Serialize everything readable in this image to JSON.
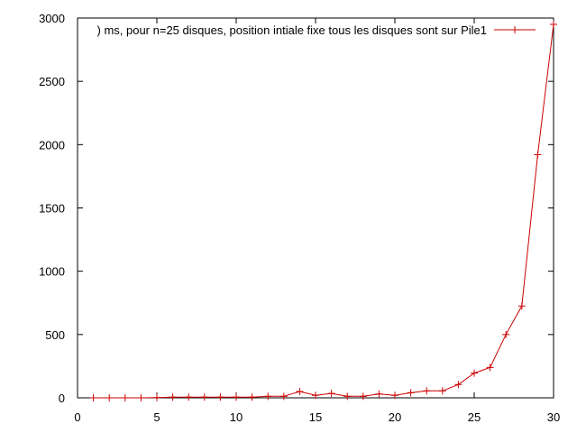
{
  "chart_data": {
    "type": "line",
    "title": "",
    "xlabel": "",
    "ylabel": "",
    "xlim": [
      0,
      30
    ],
    "ylim": [
      0,
      3000
    ],
    "x_ticks": [
      "0",
      "5",
      "10",
      "15",
      "20",
      "25",
      "30"
    ],
    "y_ticks": [
      "0",
      "500",
      "1000",
      "1500",
      "2000",
      "2500",
      "3000"
    ],
    "grid": false,
    "legend_position": "top-right",
    "series": [
      {
        "name": ") ms, pour n=25 disques, position intiale fixe tous les disques sont sur Pile1",
        "color": "#cc0000",
        "marker": "plus",
        "x": [
          1,
          2,
          3,
          4,
          5,
          6,
          7,
          8,
          9,
          10,
          11,
          12,
          13,
          14,
          15,
          16,
          17,
          18,
          19,
          20,
          21,
          22,
          23,
          24,
          25,
          26,
          27,
          28,
          29,
          30
        ],
        "y": [
          0,
          0,
          0,
          0,
          2,
          5,
          5,
          5,
          5,
          5,
          5,
          12,
          12,
          50,
          20,
          35,
          12,
          12,
          30,
          20,
          40,
          55,
          55,
          105,
          195,
          240,
          500,
          725,
          1920,
          2950
        ]
      }
    ]
  }
}
